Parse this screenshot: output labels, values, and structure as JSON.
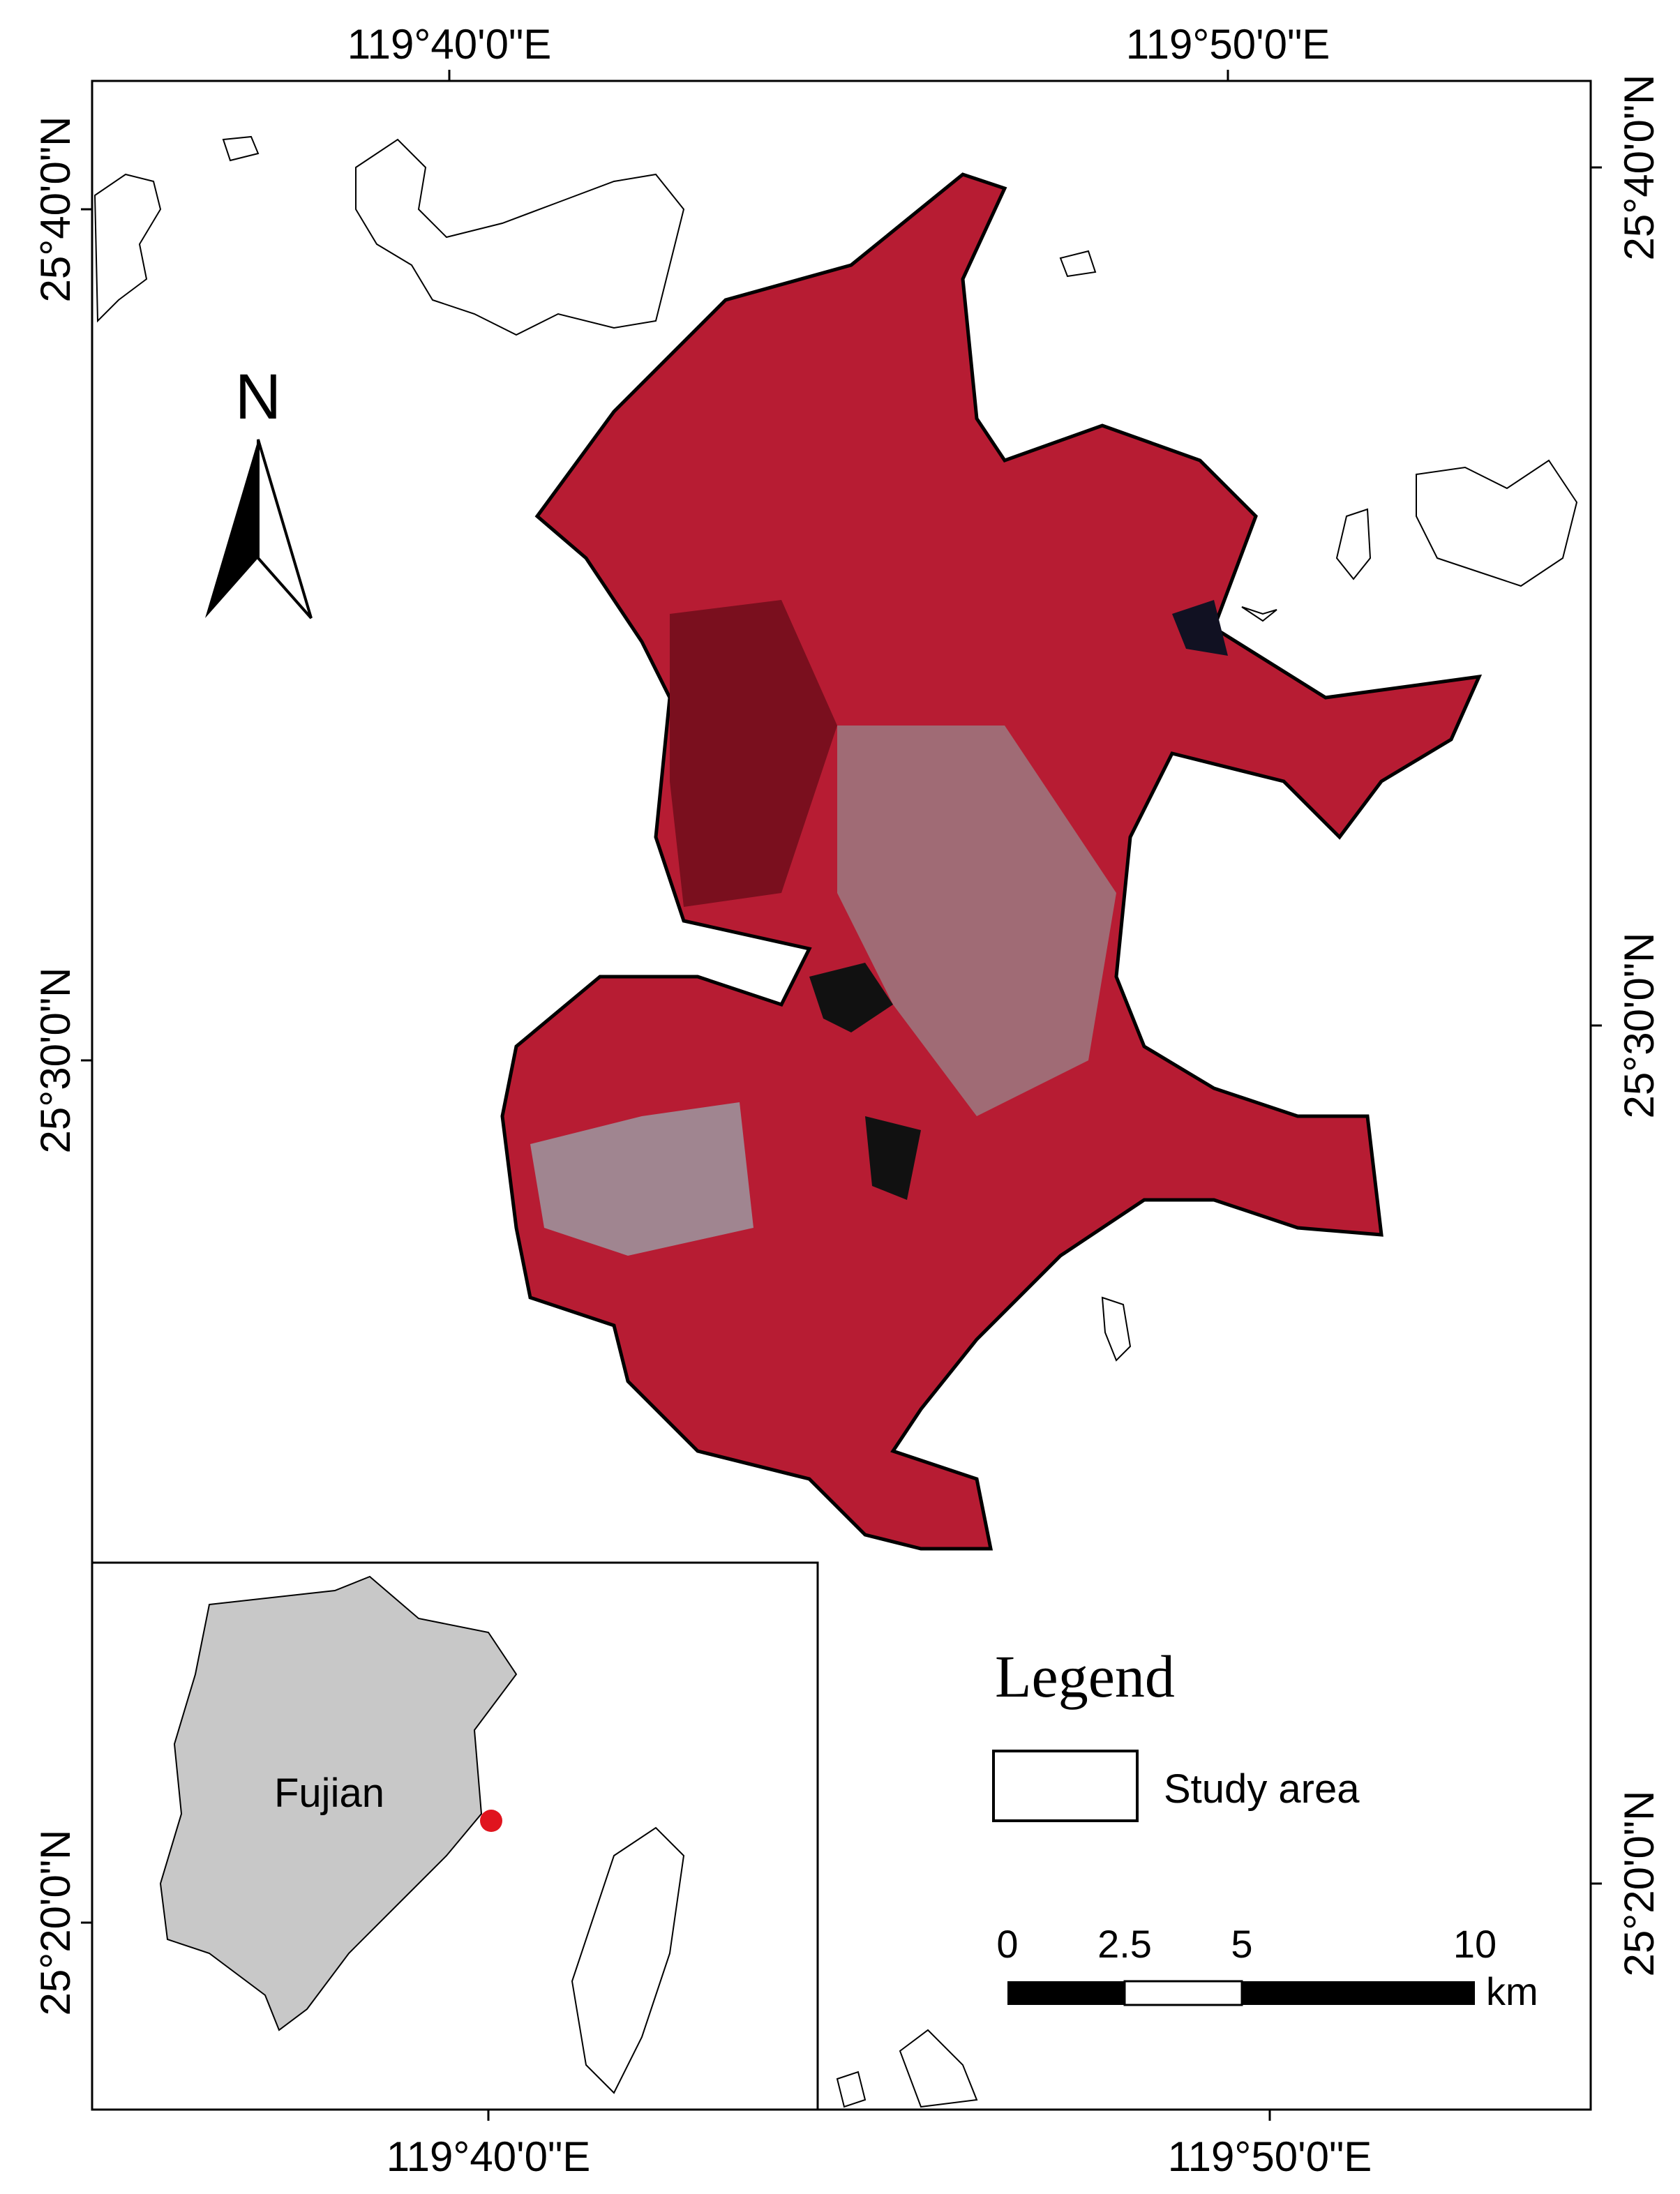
{
  "map": {
    "top_labels": [
      "119°40'0\"E",
      "119°50'0\"E"
    ],
    "bottom_labels": [
      "119°40'0\"E",
      "119°50'0\"E"
    ],
    "left_labels": [
      "25°40'0\"N",
      "25°30'0\"N",
      "25°20'0\"N"
    ],
    "right_labels": [
      "25°40'0\"N",
      "25°30'0\"N",
      "25°20'0\"N"
    ],
    "north_arrow": "N",
    "inset": {
      "label": "Fujian"
    },
    "legend": {
      "title": "Legend",
      "item": "Study area"
    },
    "scale_bar": {
      "labels": [
        "0",
        "2.5",
        "5",
        "10"
      ],
      "unit": "km"
    }
  }
}
